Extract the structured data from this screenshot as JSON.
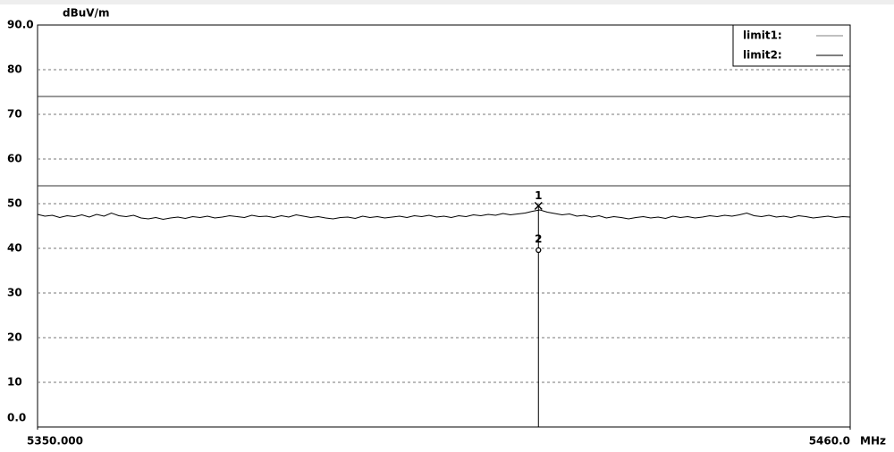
{
  "chart_data": {
    "type": "line",
    "y_unit": "dBuV/m",
    "x_unit": "MHz",
    "xlim": [
      5350,
      5460
    ],
    "xticks": [
      {
        "value": 5350,
        "label": "5350.000"
      },
      {
        "value": 5460,
        "label": "5460.0"
      }
    ],
    "ylim": [
      0,
      90
    ],
    "yticks": [
      {
        "value": 0,
        "label": "0.0"
      },
      10,
      20,
      30,
      40,
      50,
      60,
      70,
      80,
      {
        "value": 90,
        "label": "90.0"
      }
    ],
    "grid": true,
    "legend": "top-right",
    "limits": [
      {
        "name": "limit1:",
        "value": 74,
        "color": "#9a9a9a"
      },
      {
        "name": "limit2:",
        "value": 54,
        "color": "#333333"
      }
    ],
    "x": [
      5350,
      5351,
      5352,
      5353,
      5354,
      5355,
      5356,
      5357,
      5358,
      5359,
      5360,
      5361,
      5362,
      5363,
      5364,
      5365,
      5366,
      5367,
      5368,
      5369,
      5370,
      5371,
      5372,
      5373,
      5374,
      5375,
      5376,
      5377,
      5378,
      5379,
      5380,
      5381,
      5382,
      5383,
      5384,
      5385,
      5386,
      5387,
      5388,
      5389,
      5390,
      5391,
      5392,
      5393,
      5394,
      5395,
      5396,
      5397,
      5398,
      5399,
      5400,
      5401,
      5402,
      5403,
      5404,
      5405,
      5406,
      5407,
      5408,
      5409,
      5410,
      5411,
      5412,
      5413,
      5414,
      5415,
      5416,
      5417,
      5418,
      5419,
      5420,
      5421,
      5422,
      5423,
      5424,
      5425,
      5426,
      5427,
      5428,
      5429,
      5430,
      5431,
      5432,
      5433,
      5434,
      5435,
      5436,
      5437,
      5438,
      5439,
      5440,
      5441,
      5442,
      5443,
      5444,
      5445,
      5446,
      5447,
      5448,
      5449,
      5450,
      5451,
      5452,
      5453,
      5454,
      5455,
      5456,
      5457,
      5458,
      5459,
      5460
    ],
    "series": [
      {
        "color": "#000000",
        "values": [
          47.6,
          47.2,
          47.4,
          46.9,
          47.3,
          47.1,
          47.5,
          47.0,
          47.6,
          47.2,
          47.9,
          47.3,
          47.1,
          47.4,
          46.8,
          46.6,
          46.9,
          46.5,
          46.8,
          47.0,
          46.7,
          47.1,
          46.9,
          47.2,
          46.8,
          47.0,
          47.3,
          47.1,
          46.9,
          47.4,
          47.1,
          47.2,
          46.9,
          47.3,
          47.0,
          47.5,
          47.2,
          46.9,
          47.1,
          46.8,
          46.6,
          46.9,
          47.0,
          46.7,
          47.2,
          46.9,
          47.1,
          46.8,
          47.0,
          47.2,
          46.9,
          47.3,
          47.1,
          47.4,
          47.0,
          47.2,
          46.9,
          47.3,
          47.1,
          47.5,
          47.3,
          47.6,
          47.4,
          47.8,
          47.5,
          47.7,
          47.9,
          48.3,
          48.6,
          48.1,
          47.8,
          47.5,
          47.7,
          47.2,
          47.4,
          47.0,
          47.3,
          46.8,
          47.1,
          46.9,
          46.6,
          46.9,
          47.1,
          46.8,
          47.0,
          46.7,
          47.2,
          46.9,
          47.1,
          46.8,
          47.0,
          47.3,
          47.1,
          47.4,
          47.2,
          47.5,
          47.9,
          47.3,
          47.1,
          47.4,
          47.0,
          47.2,
          46.9,
          47.3,
          47.1,
          46.8,
          47.0,
          47.2,
          46.9,
          47.1,
          47.0
        ]
      }
    ],
    "markers": [
      {
        "label": "1",
        "x": 5417.8,
        "y": 49.5
      },
      {
        "label": "2",
        "x": 5417.8,
        "y": 40
      }
    ]
  }
}
